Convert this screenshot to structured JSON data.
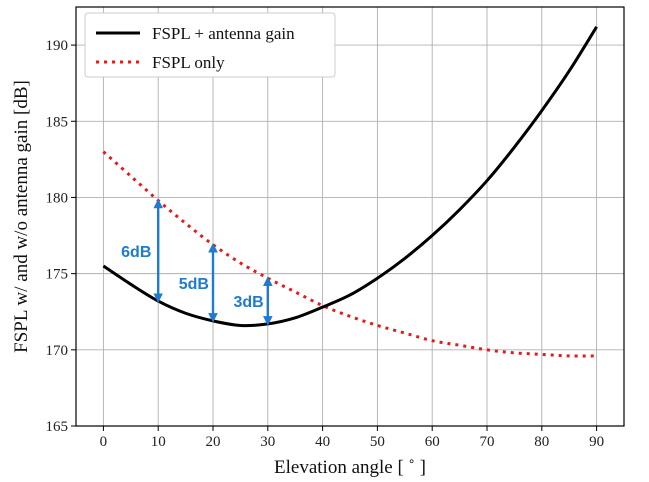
{
  "chart_data": {
    "type": "line",
    "title": "",
    "xlabel": "Elevation angle [ ˚ ]",
    "ylabel": "FSPL w/ and w/o antenna gain [dB]",
    "xlim": [
      -5,
      95
    ],
    "ylim": [
      165,
      192.5
    ],
    "xticks": [
      0,
      10,
      20,
      30,
      40,
      50,
      60,
      70,
      80,
      90
    ],
    "yticks": [
      165,
      170,
      175,
      180,
      185,
      190
    ],
    "grid": true,
    "legend_position": "top-left",
    "series": [
      {
        "name": "FSPL + antenna gain",
        "color": "#000000",
        "style": "solid",
        "x": [
          0,
          5,
          10,
          15,
          20,
          25,
          30,
          35,
          40,
          45,
          50,
          55,
          60,
          65,
          70,
          75,
          80,
          85,
          90
        ],
        "y": [
          175.5,
          174.3,
          173.2,
          172.4,
          171.9,
          171.6,
          171.7,
          172.1,
          172.8,
          173.6,
          174.7,
          176.0,
          177.5,
          179.2,
          181.1,
          183.3,
          185.7,
          188.3,
          191.2
        ]
      },
      {
        "name": "FSPL only",
        "color": "#e8191a",
        "style": "dotted",
        "x": [
          0,
          5,
          10,
          15,
          20,
          25,
          30,
          35,
          40,
          45,
          50,
          55,
          60,
          65,
          70,
          75,
          80,
          85,
          90
        ],
        "y": [
          183.0,
          181.4,
          179.8,
          178.3,
          176.9,
          175.7,
          174.7,
          173.8,
          172.9,
          172.2,
          171.6,
          171.1,
          170.6,
          170.3,
          170.0,
          169.8,
          169.7,
          169.6,
          169.6
        ]
      }
    ],
    "annotations": [
      {
        "label": "6dB",
        "x": 10,
        "y_low": 173.2,
        "y_high": 179.8,
        "label_x": 6
      },
      {
        "label": "5dB",
        "x": 20,
        "y_low": 171.9,
        "y_high": 176.9,
        "label_x": 16.5
      },
      {
        "label": "3dB",
        "x": 30,
        "y_low": 171.7,
        "y_high": 174.7,
        "label_x": 26.5
      }
    ],
    "annotation_color": "#1f7ad1"
  }
}
